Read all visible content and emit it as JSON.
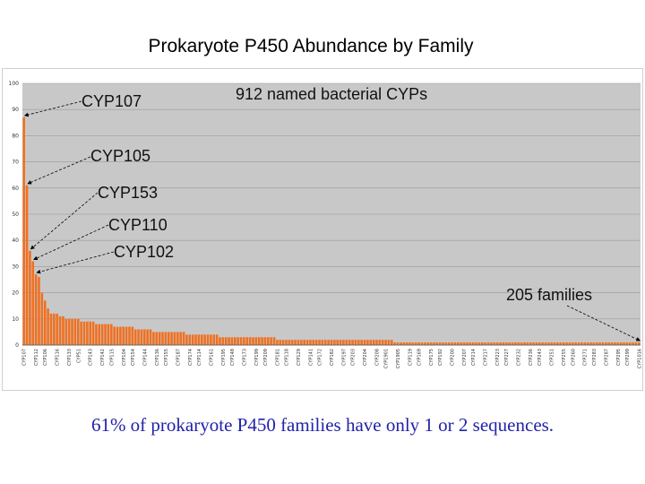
{
  "slide": {
    "title": "Prokaryote P450 Abundance by Family",
    "footer": "61% of prokaryote P450 families have only 1 or 2 sequences."
  },
  "chart_data": {
    "type": "bar",
    "title": "Prokaryote P450 Abundance by Family",
    "subtitle": "912 named bacterial CYPs",
    "xlabel": "",
    "ylabel": "",
    "ylim": [
      0,
      100
    ],
    "yticks": [
      0,
      10,
      20,
      30,
      40,
      50,
      60,
      70,
      80,
      90,
      100
    ],
    "grid": true,
    "bar_color": "#f07020",
    "plot_bg": "#c8c8c8",
    "family_count": 205,
    "values": [
      87,
      61,
      36,
      32,
      27,
      26,
      20,
      17,
      14,
      12,
      12,
      12,
      11,
      11,
      10,
      10,
      10,
      10,
      10,
      9,
      9,
      9,
      9,
      9,
      8,
      8,
      8,
      8,
      8,
      8,
      7,
      7,
      7,
      7,
      7,
      7,
      7,
      6,
      6,
      6,
      6,
      6,
      6,
      5,
      5,
      5,
      5,
      5,
      5,
      5,
      5,
      5,
      5,
      5,
      4,
      4,
      4,
      4,
      4,
      4,
      4,
      4,
      4,
      4,
      4,
      3,
      3,
      3,
      3,
      3,
      3,
      3,
      3,
      3,
      3,
      3,
      3,
      3,
      3,
      3,
      3,
      3,
      3,
      3,
      2,
      2,
      2,
      2,
      2,
      2,
      2,
      2,
      2,
      2,
      2,
      2,
      2,
      2,
      2,
      2,
      2,
      2,
      2,
      2,
      2,
      2,
      2,
      2,
      2,
      2,
      2,
      2,
      2,
      2,
      2,
      2,
      2,
      2,
      2,
      2,
      2,
      2,
      2,
      1,
      1,
      1,
      1,
      1,
      1,
      1,
      1,
      1,
      1,
      1,
      1,
      1,
      1,
      1,
      1,
      1,
      1,
      1,
      1,
      1,
      1,
      1,
      1,
      1,
      1,
      1,
      1,
      1,
      1,
      1,
      1,
      1,
      1,
      1,
      1,
      1,
      1,
      1,
      1,
      1,
      1,
      1,
      1,
      1,
      1,
      1,
      1,
      1,
      1,
      1,
      1,
      1,
      1,
      1,
      1,
      1,
      1,
      1,
      1,
      1,
      1,
      1,
      1,
      1,
      1,
      1,
      1,
      1,
      1,
      1,
      1,
      1,
      1,
      1,
      1,
      1,
      1,
      1,
      1,
      1,
      1
    ],
    "tick_labels": [
      "CYP107",
      "CYP112",
      "CYP106",
      "CYP116",
      "CYP133",
      "CYP51",
      "CYP143",
      "CYP142",
      "CYP115",
      "CYP104",
      "CYP154",
      "CYP144",
      "CYP136",
      "CYP155",
      "CYP187",
      "CYP174",
      "CYP114",
      "CYP161",
      "CYP195",
      "CYP148",
      "CYP173",
      "CYP199",
      "CYP209",
      "CYP181",
      "CYP118",
      "CYP129",
      "CYP141",
      "CYP172",
      "CYP182",
      "CYP197",
      "CYP203",
      "CYP204",
      "CYP208",
      "CYP1901",
      "CYP1905",
      "CYP119",
      "CYP169",
      "CYP175",
      "CYP192",
      "CYP200",
      "CYP207",
      "CYP214",
      "CYP217",
      "CYP223",
      "CYP227",
      "CYP232",
      "CYP236",
      "CYP243",
      "CYP251",
      "CYP255",
      "CYP260",
      "CYP271",
      "CYP283",
      "CYP287",
      "CYP295",
      "CYP299",
      "CYP1016"
    ],
    "annotations": [
      {
        "text": "CYP107",
        "bar_index": 0,
        "value": 87
      },
      {
        "text": "CYP105",
        "bar_index": 1,
        "value": 61
      },
      {
        "text": "CYP153",
        "bar_index": 2,
        "value": 36
      },
      {
        "text": "CYP110",
        "bar_index": 3,
        "value": 32
      },
      {
        "text": "CYP102",
        "bar_index": 4,
        "value": 27
      },
      {
        "text": "205 families",
        "bar_index": 204,
        "value": 1
      }
    ]
  }
}
